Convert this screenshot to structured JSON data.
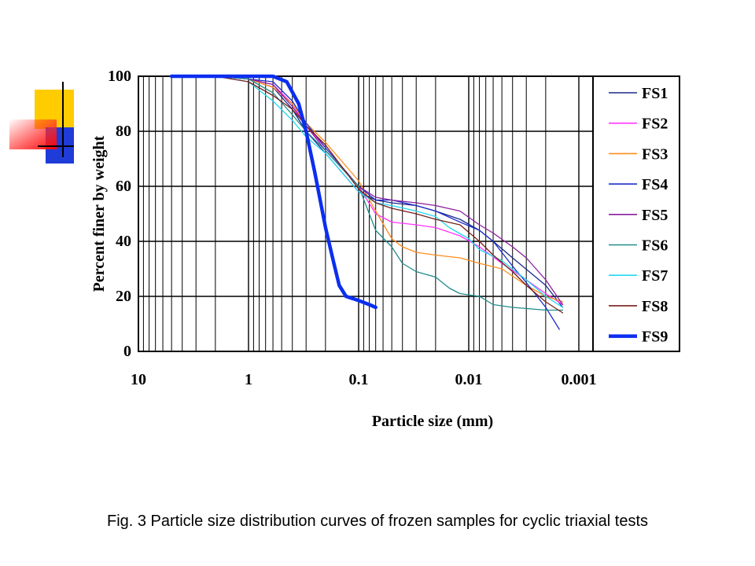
{
  "caption": "Fig. 3 Particle size distribution curves of frozen samples for cyclic triaxial tests",
  "chart_data": {
    "type": "line",
    "xlabel": "Particle size (mm)",
    "ylabel": "Percent finer by weight",
    "x_scale": "log",
    "x_reversed": true,
    "xlim": [
      10,
      0.0008
    ],
    "ylim": [
      0,
      100
    ],
    "x_ticks": [
      10,
      1,
      0.1,
      0.01,
      0.001
    ],
    "x_tick_labels": [
      "10",
      "1",
      "0.1",
      "0.01",
      "0.001"
    ],
    "y_ticks": [
      0,
      20,
      40,
      60,
      80,
      100
    ],
    "y_tick_labels": [
      "0",
      "20",
      "40",
      "60",
      "80",
      "100"
    ],
    "grid": true,
    "legend_position": "right",
    "series": [
      {
        "name": "FS1",
        "color": "#1c2a8c",
        "width": 1.3,
        "points": [
          [
            5,
            100
          ],
          [
            2,
            100
          ],
          [
            1,
            99
          ],
          [
            0.6,
            96
          ],
          [
            0.4,
            88
          ],
          [
            0.3,
            80
          ],
          [
            0.2,
            72
          ],
          [
            0.1,
            58
          ],
          [
            0.07,
            55
          ],
          [
            0.05,
            54
          ],
          [
            0.03,
            53
          ],
          [
            0.02,
            51
          ],
          [
            0.012,
            48
          ],
          [
            0.008,
            44
          ],
          [
            0.006,
            40
          ],
          [
            0.004,
            34
          ],
          [
            0.002,
            24
          ],
          [
            0.0014,
            16
          ]
        ]
      },
      {
        "name": "FS2",
        "color": "#ff33ff",
        "width": 1.3,
        "points": [
          [
            5,
            100
          ],
          [
            2,
            100
          ],
          [
            1,
            99
          ],
          [
            0.6,
            97
          ],
          [
            0.4,
            90
          ],
          [
            0.3,
            82
          ],
          [
            0.2,
            74
          ],
          [
            0.1,
            60
          ],
          [
            0.07,
            50
          ],
          [
            0.05,
            47
          ],
          [
            0.03,
            46
          ],
          [
            0.02,
            45
          ],
          [
            0.012,
            42
          ],
          [
            0.008,
            38
          ],
          [
            0.005,
            32
          ],
          [
            0.003,
            26
          ],
          [
            0.002,
            21
          ],
          [
            0.0014,
            17
          ]
        ]
      },
      {
        "name": "FS3",
        "color": "#ff8c1a",
        "width": 1.3,
        "points": [
          [
            5,
            100
          ],
          [
            2,
            100
          ],
          [
            1,
            99
          ],
          [
            0.6,
            96
          ],
          [
            0.4,
            90
          ],
          [
            0.3,
            83
          ],
          [
            0.2,
            76
          ],
          [
            0.1,
            62
          ],
          [
            0.07,
            51
          ],
          [
            0.05,
            41
          ],
          [
            0.04,
            38
          ],
          [
            0.03,
            36
          ],
          [
            0.02,
            35
          ],
          [
            0.012,
            34
          ],
          [
            0.008,
            32
          ],
          [
            0.005,
            30
          ],
          [
            0.003,
            24
          ],
          [
            0.002,
            20
          ],
          [
            0.0014,
            18
          ]
        ]
      },
      {
        "name": "FS4",
        "color": "#1f2fcc",
        "width": 1.3,
        "points": [
          [
            5,
            100
          ],
          [
            2,
            100
          ],
          [
            1,
            99
          ],
          [
            0.6,
            98
          ],
          [
            0.4,
            91
          ],
          [
            0.3,
            83
          ],
          [
            0.2,
            74
          ],
          [
            0.1,
            60
          ],
          [
            0.07,
            55
          ],
          [
            0.05,
            55
          ],
          [
            0.03,
            53
          ],
          [
            0.02,
            51
          ],
          [
            0.012,
            47
          ],
          [
            0.008,
            44
          ],
          [
            0.006,
            40
          ],
          [
            0.004,
            31
          ],
          [
            0.003,
            25
          ],
          [
            0.002,
            16
          ],
          [
            0.0015,
            8
          ]
        ]
      },
      {
        "name": "FS5",
        "color": "#8b1f9e",
        "width": 1.3,
        "points": [
          [
            5,
            100
          ],
          [
            2,
            100
          ],
          [
            1,
            99
          ],
          [
            0.6,
            97
          ],
          [
            0.4,
            89
          ],
          [
            0.3,
            82
          ],
          [
            0.2,
            73
          ],
          [
            0.1,
            60
          ],
          [
            0.07,
            56
          ],
          [
            0.05,
            55
          ],
          [
            0.03,
            54
          ],
          [
            0.02,
            53
          ],
          [
            0.012,
            51
          ],
          [
            0.008,
            46
          ],
          [
            0.006,
            43
          ],
          [
            0.004,
            38
          ],
          [
            0.003,
            34
          ],
          [
            0.002,
            26
          ],
          [
            0.0014,
            17
          ]
        ]
      },
      {
        "name": "FS6",
        "color": "#218c8c",
        "width": 1.3,
        "points": [
          [
            5,
            100
          ],
          [
            2,
            100
          ],
          [
            1,
            99
          ],
          [
            0.6,
            94
          ],
          [
            0.4,
            86
          ],
          [
            0.3,
            80
          ],
          [
            0.2,
            73
          ],
          [
            0.1,
            60
          ],
          [
            0.07,
            44
          ],
          [
            0.05,
            38
          ],
          [
            0.04,
            32
          ],
          [
            0.03,
            29
          ],
          [
            0.02,
            27
          ],
          [
            0.015,
            23
          ],
          [
            0.012,
            21
          ],
          [
            0.008,
            20
          ],
          [
            0.006,
            17
          ],
          [
            0.004,
            16
          ],
          [
            0.002,
            15
          ],
          [
            0.0014,
            15
          ]
        ]
      },
      {
        "name": "FS7",
        "color": "#22d8f2",
        "width": 1.3,
        "points": [
          [
            5,
            100
          ],
          [
            2,
            100
          ],
          [
            1,
            98
          ],
          [
            0.6,
            91
          ],
          [
            0.4,
            84
          ],
          [
            0.3,
            78
          ],
          [
            0.2,
            72
          ],
          [
            0.1,
            58
          ],
          [
            0.07,
            54
          ],
          [
            0.05,
            53
          ],
          [
            0.03,
            51
          ],
          [
            0.02,
            49
          ],
          [
            0.015,
            45
          ],
          [
            0.01,
            41
          ],
          [
            0.008,
            37
          ],
          [
            0.005,
            33
          ],
          [
            0.003,
            26
          ],
          [
            0.002,
            20
          ],
          [
            0.0014,
            16
          ]
        ]
      },
      {
        "name": "FS8",
        "color": "#7a1f1a",
        "width": 1.3,
        "points": [
          [
            5,
            100
          ],
          [
            2,
            100
          ],
          [
            1,
            98
          ],
          [
            0.6,
            93
          ],
          [
            0.4,
            88
          ],
          [
            0.3,
            82
          ],
          [
            0.2,
            75
          ],
          [
            0.1,
            59
          ],
          [
            0.07,
            54
          ],
          [
            0.05,
            52
          ],
          [
            0.03,
            50
          ],
          [
            0.02,
            48
          ],
          [
            0.012,
            46
          ],
          [
            0.008,
            40
          ],
          [
            0.006,
            35
          ],
          [
            0.004,
            29
          ],
          [
            0.003,
            24
          ],
          [
            0.002,
            18
          ],
          [
            0.0014,
            14
          ]
        ]
      },
      {
        "name": "FS9",
        "color": "#0b2ef0",
        "width": 4.5,
        "points": [
          [
            5,
            100
          ],
          [
            2,
            100
          ],
          [
            1,
            100
          ],
          [
            0.6,
            100
          ],
          [
            0.45,
            98
          ],
          [
            0.35,
            90
          ],
          [
            0.3,
            80
          ],
          [
            0.25,
            65
          ],
          [
            0.2,
            45
          ],
          [
            0.17,
            33
          ],
          [
            0.15,
            24
          ],
          [
            0.13,
            20
          ],
          [
            0.1,
            18.5
          ],
          [
            0.08,
            17
          ],
          [
            0.07,
            16
          ]
        ]
      }
    ]
  }
}
